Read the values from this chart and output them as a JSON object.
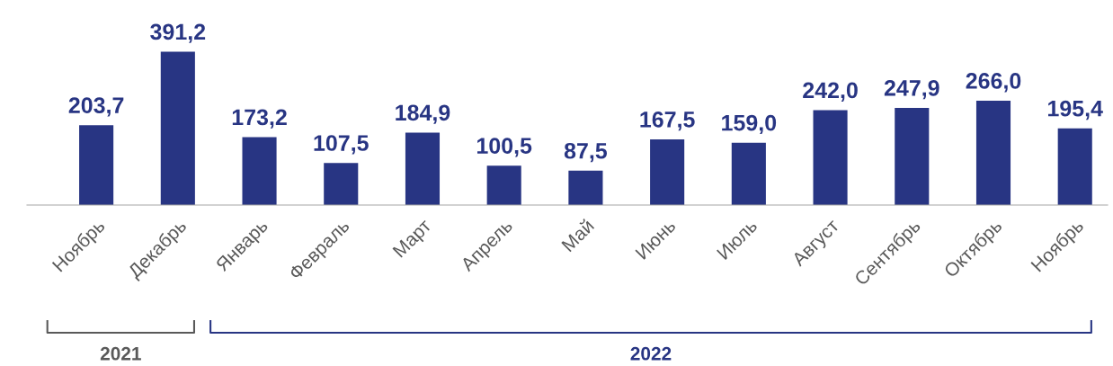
{
  "chart_data": {
    "type": "bar",
    "categories": [
      "Ноябрь",
      "Декабрь",
      "Январь",
      "Февраль",
      "Март",
      "Апрель",
      "Май",
      "Июнь",
      "Июль",
      "Август",
      "Сентябрь",
      "Октябрь",
      "Ноябрь"
    ],
    "values": [
      203.7,
      391.2,
      173.2,
      107.5,
      184.9,
      100.5,
      87.5,
      167.5,
      159.0,
      242.0,
      247.9,
      266.0,
      195.4
    ],
    "value_labels": [
      "203,7",
      "391,2",
      "173,2",
      "107,5",
      "184,9",
      "100,5",
      "87,5",
      "167,5",
      "159,0",
      "242,0",
      "247,9",
      "266,0",
      "195,4"
    ],
    "color": "#283583",
    "annotations": [
      "2021",
      "2022"
    ],
    "grid": false,
    "legend": false
  }
}
